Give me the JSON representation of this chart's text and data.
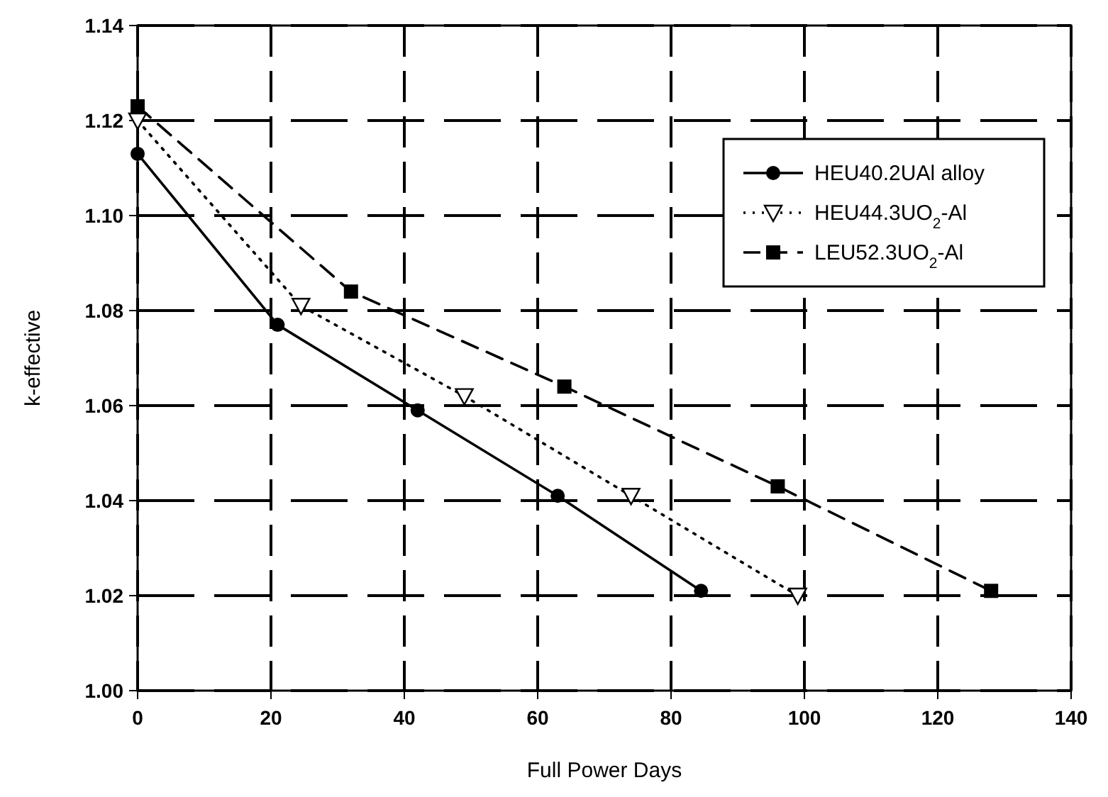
{
  "chart_data": {
    "type": "line",
    "xlabel": "Full Power Days",
    "ylabel": "k-effective",
    "xlim": [
      0,
      140
    ],
    "xticks": [
      0,
      20,
      40,
      60,
      80,
      100,
      120,
      140
    ],
    "ylim": [
      1.0,
      1.14
    ],
    "yticks": [
      {
        "value": 1.0,
        "label": "1.00"
      },
      {
        "value": 1.02,
        "label": "1.02"
      },
      {
        "value": 1.04,
        "label": "1.04"
      },
      {
        "value": 1.06,
        "label": "1.06"
      },
      {
        "value": 1.08,
        "label": "1.08"
      },
      {
        "value": 1.1,
        "label": "1.10"
      },
      {
        "value": 1.12,
        "label": "1.12"
      },
      {
        "value": 1.14,
        "label": "1.14"
      }
    ],
    "grid": true,
    "legend": "top right",
    "series": [
      {
        "name": "HEU40.2UAl alloy",
        "color": "#000000",
        "marker": "circle",
        "line_style": "solid",
        "x": [
          0,
          21,
          42,
          63,
          84.5
        ],
        "values": [
          1.113,
          1.077,
          1.059,
          1.041,
          1.021
        ]
      },
      {
        "name": "HEU44.3UO$_{2}$-Al",
        "color": "#000000",
        "marker": "triangle",
        "line_style": "dotted",
        "x": [
          0,
          24.5,
          49,
          74,
          99
        ],
        "values": [
          1.12,
          1.081,
          1.062,
          1.041,
          1.02
        ]
      },
      {
        "name": "LEU52.3UO$_{2}$-Al",
        "color": "#000000",
        "marker": "square",
        "line_style": "dashed",
        "x": [
          0,
          32,
          64,
          96,
          128
        ],
        "values": [
          1.123,
          1.084,
          1.064,
          1.043,
          1.021
        ]
      }
    ]
  }
}
